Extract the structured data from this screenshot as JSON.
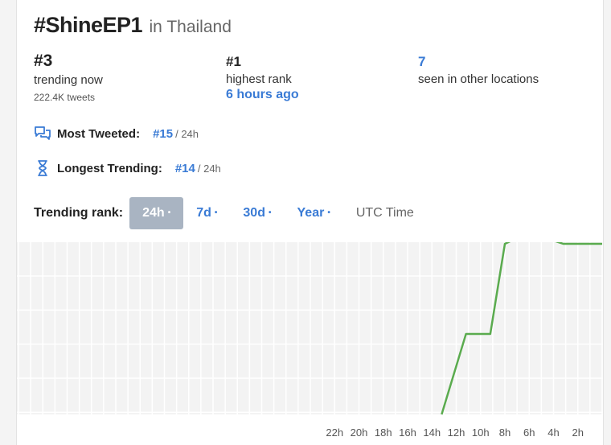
{
  "header": {
    "hashtag": "#ShineEP1",
    "location": "in Thailand"
  },
  "stats": {
    "current": {
      "rank": "#3",
      "label": "trending now",
      "tweets": "222.4K tweets"
    },
    "highest": {
      "rank": "#1",
      "label": "highest rank",
      "when": "6 hours ago"
    },
    "other": {
      "count": "7",
      "label": "seen in other locations"
    }
  },
  "metrics": {
    "most_tweeted": {
      "label": "Most Tweeted:",
      "rank": "#15",
      "period": "/ 24h",
      "icon": "chat-bubbles-icon"
    },
    "longest_trending": {
      "label": "Longest Trending:",
      "rank": "#14",
      "period": "/ 24h",
      "icon": "hourglass-icon"
    }
  },
  "rank_tabs": {
    "label": "Trending rank:",
    "tabs": [
      {
        "label": "24h",
        "dot": "•",
        "active": true
      },
      {
        "label": "7d",
        "dot": "•",
        "active": false
      },
      {
        "label": "30d",
        "dot": "•",
        "active": false
      },
      {
        "label": "Year",
        "dot": "•",
        "active": false
      }
    ],
    "timezone": "UTC Time"
  },
  "chart_data": {
    "type": "line",
    "x_ticks": [
      "22h",
      "20h",
      "18h",
      "16h",
      "14h",
      "12h",
      "10h",
      "8h",
      "6h",
      "4h",
      "2h"
    ],
    "hours_ago": [
      11.0,
      10.0,
      9.0,
      8.0,
      7.0,
      6.0,
      5.0,
      4.0,
      3.0,
      2.0,
      1.0,
      0.0
    ],
    "rank": [
      null,
      10,
      10,
      1,
      1,
      1,
      2,
      3,
      3,
      3,
      3,
      3
    ],
    "series_color": "#5aab4e",
    "grid": true,
    "y_inverted": true
  }
}
